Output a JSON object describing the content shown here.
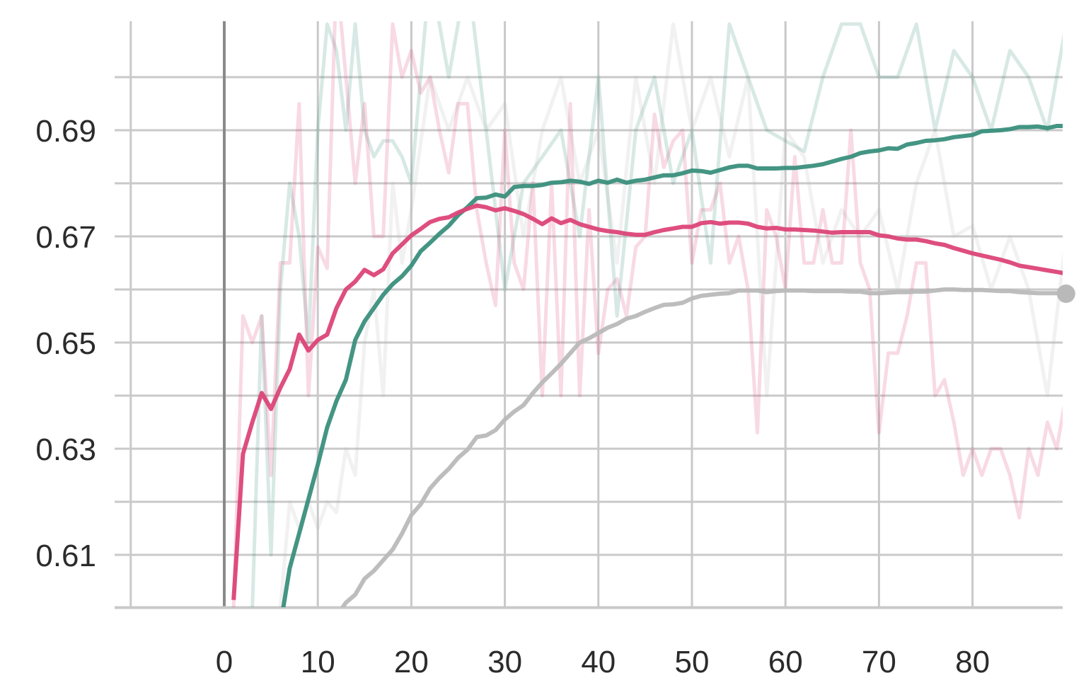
{
  "chart_data": {
    "type": "line",
    "title": "",
    "xlabel": "",
    "ylabel": "",
    "xlim": [
      -10,
      90
    ],
    "ylim": [
      0.6,
      0.7105
    ],
    "x_ticks": [
      0,
      10,
      20,
      30,
      40,
      50,
      60,
      70,
      80
    ],
    "x_tick_labels": [
      "0",
      "10",
      "20",
      "30",
      "40",
      "50",
      "60",
      "70",
      "80"
    ],
    "y_ticks": [
      0.61,
      0.63,
      0.65,
      0.67,
      0.69
    ],
    "y_tick_labels": [
      "0.61",
      "0.63",
      "0.65",
      "0.67",
      "0.69"
    ],
    "y_minor_ticks": [
      0.6,
      0.62,
      0.64,
      0.66,
      0.68,
      0.7
    ],
    "grid": true,
    "colors": {
      "pink": "#dc4477",
      "teal": "#3a8f7c",
      "gray": "#b9b9b9",
      "grid": "#c9c9c9",
      "vline": "#8a8a8a"
    },
    "series": [
      {
        "color": "#3a8f7c",
        "raw": {
          "x": [
            3,
            4,
            5,
            6,
            7,
            8,
            9,
            10,
            11,
            12,
            13,
            14,
            15,
            16,
            17,
            18,
            19,
            20,
            22,
            24,
            26,
            28,
            30,
            32,
            34,
            36,
            38,
            40,
            42,
            44,
            46,
            48,
            50,
            52,
            54,
            56,
            58,
            60,
            62,
            64,
            66,
            68,
            70,
            72,
            74,
            76,
            78,
            80,
            82,
            84,
            86,
            88,
            90
          ],
          "y": [
            0.6,
            0.655,
            0.61,
            0.66,
            0.68,
            0.67,
            0.65,
            0.69,
            0.71,
            0.705,
            0.69,
            0.71,
            0.69,
            0.685,
            0.688,
            0.688,
            0.685,
            0.68,
            0.72,
            0.7,
            0.72,
            0.69,
            0.66,
            0.68,
            0.685,
            0.69,
            0.67,
            0.7,
            0.655,
            0.69,
            0.7,
            0.68,
            0.69,
            0.665,
            0.71,
            0.7,
            0.69,
            0.688,
            0.686,
            0.7,
            0.71,
            0.71,
            0.7,
            0.7,
            0.71,
            0.69,
            0.705,
            0.7,
            0.69,
            0.705,
            0.7,
            0.69,
            0.71
          ]
        },
        "smoothed": {
          "x": [
            6.3,
            7,
            8,
            9,
            10,
            11,
            12,
            13,
            14,
            15,
            16,
            17,
            18,
            19,
            20,
            21,
            22,
            23,
            24,
            25,
            26,
            27,
            28,
            29,
            30,
            31,
            32,
            33,
            34,
            35,
            36,
            37,
            38,
            39,
            40,
            41,
            42,
            43,
            44,
            45,
            46,
            47,
            48,
            49,
            50,
            51,
            52,
            53,
            54,
            55,
            56,
            57,
            58,
            59,
            60,
            61,
            62,
            63,
            64,
            65,
            66,
            67,
            68,
            69,
            70,
            71,
            72,
            73,
            74,
            75,
            76,
            77,
            78,
            79,
            80,
            81,
            82,
            83,
            84,
            85,
            86,
            87,
            88,
            89,
            90
          ],
          "y": [
            0.6,
            0.6075,
            0.614,
            0.6205,
            0.627,
            0.634,
            0.639,
            0.643,
            0.6505,
            0.654,
            0.6565,
            0.659,
            0.661,
            0.6625,
            0.6645,
            0.6672,
            0.6688,
            0.6705,
            0.672,
            0.674,
            0.6755,
            0.6772,
            0.6773,
            0.6779,
            0.6775,
            0.6793,
            0.6795,
            0.6795,
            0.6797,
            0.6801,
            0.6802,
            0.6805,
            0.6803,
            0.6799,
            0.6805,
            0.6801,
            0.6807,
            0.6801,
            0.6805,
            0.6807,
            0.6811,
            0.6815,
            0.6815,
            0.6819,
            0.6824,
            0.6823,
            0.682,
            0.6825,
            0.683,
            0.6833,
            0.6833,
            0.6828,
            0.6828,
            0.6828,
            0.6829,
            0.6829,
            0.6831,
            0.6833,
            0.6836,
            0.6841,
            0.6846,
            0.685,
            0.6857,
            0.686,
            0.6862,
            0.6866,
            0.6865,
            0.6873,
            0.6876,
            0.688,
            0.6881,
            0.6883,
            0.6887,
            0.6889,
            0.6891,
            0.6898,
            0.6899,
            0.69,
            0.6902,
            0.6906,
            0.6906,
            0.6907,
            0.6904,
            0.6908,
            0.6908
          ]
        }
      },
      {
        "color": "#b9b9b9",
        "raw": {
          "x": [
            6,
            7,
            8,
            9,
            10,
            11,
            12,
            13,
            14,
            15,
            16,
            17,
            18,
            19,
            20,
            22,
            24,
            26,
            28,
            30,
            32,
            34,
            36,
            38,
            40,
            42,
            44,
            46,
            48,
            50,
            52,
            54,
            56,
            58,
            60,
            62,
            64,
            66,
            68,
            70,
            72,
            74,
            76,
            78,
            80,
            82,
            84,
            86,
            88,
            90
          ],
          "y": [
            0.6,
            0.62,
            0.615,
            0.62,
            0.615,
            0.62,
            0.618,
            0.63,
            0.625,
            0.65,
            0.66,
            0.64,
            0.68,
            0.665,
            0.675,
            0.7,
            0.69,
            0.7,
            0.69,
            0.695,
            0.67,
            0.69,
            0.7,
            0.68,
            0.69,
            0.665,
            0.7,
            0.68,
            0.71,
            0.69,
            0.7,
            0.685,
            0.7,
            0.64,
            0.69,
            0.685,
            0.665,
            0.675,
            0.67,
            0.675,
            0.66,
            0.68,
            0.69,
            0.67,
            0.672,
            0.66,
            0.67,
            0.66,
            0.64,
            0.67
          ]
        },
        "smoothed": {
          "x": [
            12.6,
            13,
            14,
            15,
            16,
            17,
            18,
            19,
            20,
            21,
            22,
            23,
            24,
            25,
            26,
            27,
            28,
            29,
            30,
            31,
            32,
            33,
            34,
            35,
            36,
            37,
            38,
            39,
            40,
            41,
            42,
            43,
            44,
            45,
            46,
            47,
            48,
            49,
            50,
            51,
            52,
            53,
            54,
            55,
            56,
            57,
            58,
            59,
            60,
            61,
            62,
            63,
            64,
            65,
            66,
            67,
            68,
            69,
            70,
            71,
            72,
            73,
            74,
            75,
            76,
            77,
            78,
            79,
            80,
            81,
            82,
            83,
            84,
            85,
            86,
            87,
            88,
            89,
            90
          ],
          "y": [
            0.6,
            0.601,
            0.6025,
            0.6055,
            0.607,
            0.609,
            0.611,
            0.614,
            0.6175,
            0.6195,
            0.6225,
            0.6245,
            0.6262,
            0.6283,
            0.6298,
            0.6322,
            0.6325,
            0.6335,
            0.6355,
            0.637,
            0.6382,
            0.6405,
            0.6425,
            0.6442,
            0.646,
            0.648,
            0.65,
            0.6508,
            0.6518,
            0.6528,
            0.6535,
            0.6545,
            0.655,
            0.6558,
            0.6565,
            0.6571,
            0.6572,
            0.6575,
            0.6583,
            0.6588,
            0.659,
            0.6592,
            0.6593,
            0.6598,
            0.6598,
            0.6598,
            0.6595,
            0.6597,
            0.6598,
            0.6598,
            0.6598,
            0.6597,
            0.6597,
            0.6597,
            0.6597,
            0.6596,
            0.6596,
            0.6593,
            0.6593,
            0.6594,
            0.6595,
            0.6595,
            0.6596,
            0.6596,
            0.6598,
            0.66,
            0.66,
            0.6599,
            0.6599,
            0.6599,
            0.6598,
            0.6597,
            0.6597,
            0.6595,
            0.6594,
            0.6593,
            0.6593,
            0.6593,
            0.6592
          ]
        },
        "end_marker": true
      },
      {
        "color": "#dc4477",
        "raw": {
          "x": [
            1,
            2,
            3,
            4,
            5,
            6,
            7,
            8,
            9,
            10,
            11,
            12,
            13,
            14,
            15,
            16,
            17,
            18,
            19,
            20,
            21,
            22,
            23,
            24,
            25,
            26,
            27,
            28,
            29,
            30,
            31,
            32,
            33,
            34,
            35,
            36,
            37,
            38,
            39,
            40,
            41,
            42,
            43,
            44,
            45,
            46,
            47,
            48,
            49,
            50,
            51,
            52,
            53,
            54,
            55,
            56,
            57,
            58,
            59,
            60,
            61,
            62,
            63,
            64,
            65,
            66,
            67,
            68,
            69,
            70,
            71,
            72,
            73,
            74,
            75,
            76,
            77,
            78,
            79,
            80,
            81,
            82,
            83,
            84,
            85,
            86,
            87,
            88,
            89,
            90
          ],
          "y": [
            0.6,
            0.655,
            0.65,
            0.655,
            0.625,
            0.665,
            0.665,
            0.695,
            0.64,
            0.668,
            0.664,
            0.72,
            0.7,
            0.68,
            0.695,
            0.67,
            0.67,
            0.71,
            0.7,
            0.705,
            0.697,
            0.7,
            0.69,
            0.682,
            0.695,
            0.695,
            0.675,
            0.665,
            0.657,
            0.69,
            0.665,
            0.66,
            0.68,
            0.64,
            0.68,
            0.64,
            0.695,
            0.64,
            0.675,
            0.648,
            0.66,
            0.662,
            0.655,
            0.668,
            0.67,
            0.693,
            0.683,
            0.688,
            0.69,
            0.665,
            0.675,
            0.675,
            0.68,
            0.665,
            0.67,
            0.66,
            0.633,
            0.675,
            0.67,
            0.66,
            0.685,
            0.665,
            0.665,
            0.675,
            0.665,
            0.665,
            0.69,
            0.665,
            0.66,
            0.633,
            0.648,
            0.648,
            0.655,
            0.665,
            0.665,
            0.64,
            0.643,
            0.635,
            0.625,
            0.63,
            0.625,
            0.63,
            0.63,
            0.625,
            0.617,
            0.63,
            0.625,
            0.635,
            0.63,
            0.64
          ]
        },
        "smoothed": {
          "x": [
            1,
            2,
            3,
            4,
            5,
            6,
            7,
            8,
            9,
            10,
            11,
            12,
            13,
            14,
            15,
            16,
            17,
            18,
            19,
            20,
            21,
            22,
            23,
            24,
            25,
            26,
            27,
            28,
            29,
            30,
            31,
            32,
            33,
            34,
            35,
            36,
            37,
            38,
            39,
            40,
            41,
            42,
            43,
            44,
            45,
            46,
            47,
            48,
            49,
            50,
            51,
            52,
            53,
            54,
            55,
            56,
            57,
            58,
            59,
            60,
            61,
            62,
            63,
            64,
            65,
            66,
            67,
            68,
            69,
            70,
            71,
            72,
            73,
            74,
            75,
            76,
            77,
            78,
            79,
            80,
            81,
            82,
            83,
            84,
            85,
            86,
            87,
            88,
            89,
            90
          ],
          "y": [
            0.6015,
            0.629,
            0.635,
            0.6405,
            0.6375,
            0.6415,
            0.645,
            0.6515,
            0.6485,
            0.6505,
            0.6515,
            0.6565,
            0.66,
            0.6615,
            0.6637,
            0.6627,
            0.6638,
            0.6668,
            0.6685,
            0.6702,
            0.6714,
            0.6727,
            0.6733,
            0.6736,
            0.6745,
            0.6752,
            0.6758,
            0.6755,
            0.6749,
            0.6753,
            0.6748,
            0.6742,
            0.6733,
            0.6723,
            0.6734,
            0.6725,
            0.6731,
            0.6723,
            0.6718,
            0.6713,
            0.671,
            0.6708,
            0.6705,
            0.6703,
            0.6703,
            0.6708,
            0.6712,
            0.6715,
            0.6718,
            0.6718,
            0.6725,
            0.6727,
            0.6724,
            0.6726,
            0.6726,
            0.6724,
            0.6718,
            0.6715,
            0.6716,
            0.6713,
            0.6713,
            0.6712,
            0.6711,
            0.6709,
            0.6707,
            0.6708,
            0.6708,
            0.6708,
            0.6708,
            0.6702,
            0.67,
            0.6696,
            0.6694,
            0.6694,
            0.6691,
            0.6687,
            0.6684,
            0.6678,
            0.6673,
            0.6668,
            0.6664,
            0.666,
            0.6656,
            0.6651,
            0.6645,
            0.6642,
            0.6639,
            0.6636,
            0.6633,
            0.663
          ]
        }
      }
    ]
  }
}
